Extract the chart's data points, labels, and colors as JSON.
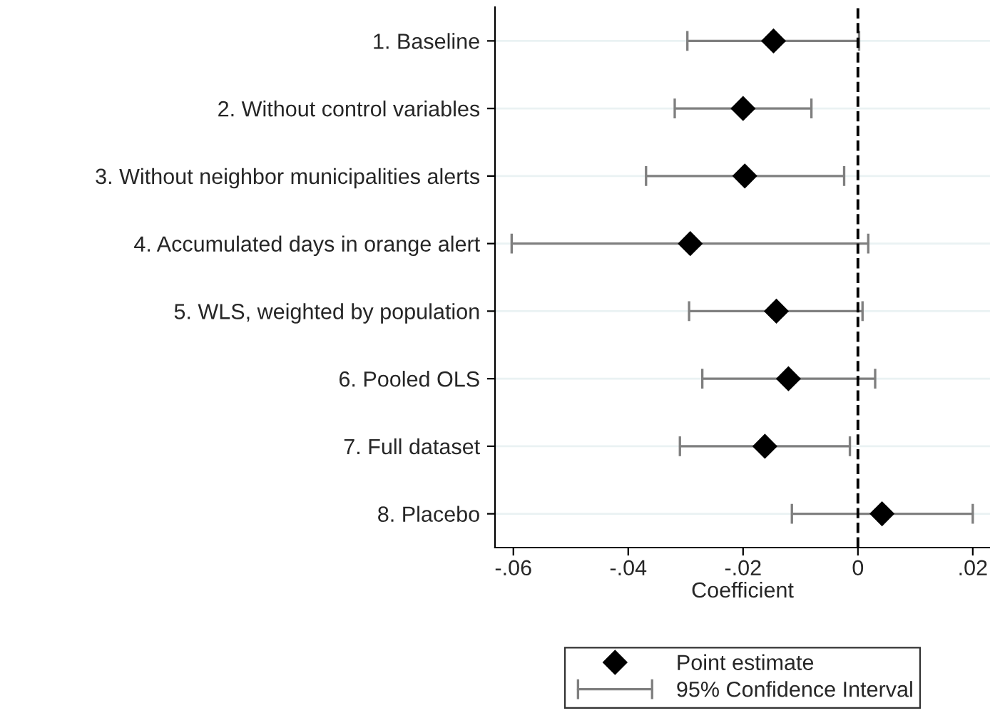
{
  "chart_data": {
    "type": "scatter",
    "orientation": "horizontal",
    "xlabel": "Coefficient",
    "categories": [
      "1. Baseline",
      "2. Without control variables",
      "3. Without neighbor municipalities alerts",
      "4. Accumulated days in orange alert",
      "5. WLS, weighted by population",
      "6. Pooled OLS",
      "7. Full dataset",
      "8. Placebo"
    ],
    "series": [
      {
        "name": "Point estimate",
        "color": "#000000",
        "marker": "diamond",
        "values": [
          -0.0147,
          -0.02,
          -0.0197,
          -0.0292,
          -0.0142,
          -0.0121,
          -0.0162,
          0.0042
        ],
        "errors": [
          [
            -0.0297,
            0.0002
          ],
          [
            -0.0319,
            -0.0081
          ],
          [
            -0.0369,
            -0.0024
          ],
          [
            -0.0603,
            0.0018
          ],
          [
            -0.0294,
            0.0008
          ],
          [
            -0.0271,
            0.003
          ],
          [
            -0.031,
            -0.0014
          ],
          [
            -0.0115,
            0.02
          ]
        ]
      }
    ],
    "annotations": [
      "95% Confidence Interval"
    ],
    "xlim": [
      -0.0632,
      0.023
    ],
    "xticks": [
      {
        "value": -0.06,
        "label": "-.06"
      },
      {
        "value": -0.04,
        "label": "-.04"
      },
      {
        "value": -0.02,
        "label": "-.02"
      },
      {
        "value": 0,
        "label": "0"
      },
      {
        "value": 0.02,
        "label": ".02"
      }
    ],
    "ref_lines": [
      {
        "axis": "x",
        "value": 0,
        "color": "#000000",
        "line_style": "dashed"
      }
    ],
    "grid": "y",
    "legend": "bottom"
  }
}
